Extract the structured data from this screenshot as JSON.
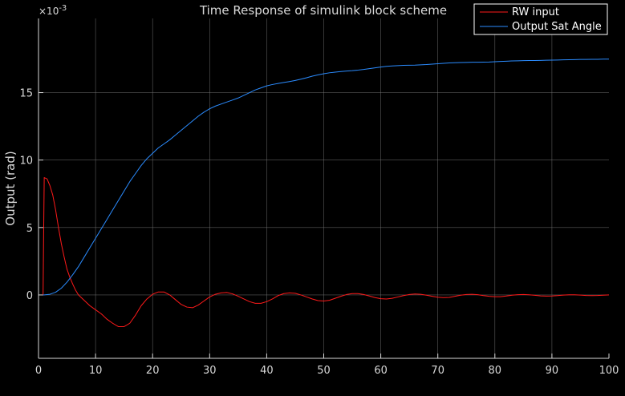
{
  "chart_data": {
    "type": "line",
    "title": "Time Response of simulink block scheme",
    "xlabel": "",
    "ylabel": "Output  (rad)",
    "y_exponent_label": "×10",
    "y_exponent_power": "-3",
    "xlim": [
      0,
      100
    ],
    "ylim": [
      -4.7,
      20.5
    ],
    "x_ticks": [
      0,
      10,
      20,
      30,
      40,
      50,
      60,
      70,
      80,
      90,
      100
    ],
    "y_ticks": [
      0,
      5,
      10,
      15
    ],
    "x_tick_labels": [
      "0",
      "10",
      "20",
      "30",
      "40",
      "50",
      "60",
      "70",
      "80",
      "90",
      "100"
    ],
    "y_tick_labels": [
      "0",
      "5",
      "10",
      "15"
    ],
    "grid": true,
    "legend_position": "top-right",
    "background_color": "#000000",
    "axes_color": "#d9d9d9",
    "grid_color": "#7a7a7a",
    "series": [
      {
        "name": "RW input",
        "color": "#ff1a1a",
        "points": [
          [
            0.8,
            0
          ],
          [
            0.9,
            4.5
          ],
          [
            1.0,
            8.7
          ],
          [
            1.5,
            8.6
          ],
          [
            2.0,
            8.1
          ],
          [
            2.5,
            7.4
          ],
          [
            3.0,
            6.3
          ],
          [
            3.5,
            5.0
          ],
          [
            4.0,
            3.8
          ],
          [
            4.5,
            2.8
          ],
          [
            5.0,
            1.9
          ],
          [
            5.5,
            1.3
          ],
          [
            6.0,
            0.8
          ],
          [
            6.5,
            0.35
          ],
          [
            7.0,
            0.0
          ],
          [
            8.0,
            -0.4
          ],
          [
            9.0,
            -0.8
          ],
          [
            10.0,
            -1.1
          ],
          [
            11.0,
            -1.4
          ],
          [
            12.0,
            -1.8
          ],
          [
            13.0,
            -2.1
          ],
          [
            14.0,
            -2.35
          ],
          [
            15.0,
            -2.35
          ],
          [
            16.0,
            -2.1
          ],
          [
            17.0,
            -1.5
          ],
          [
            18.0,
            -0.8
          ],
          [
            19.0,
            -0.3
          ],
          [
            20.0,
            0.05
          ],
          [
            21.0,
            0.22
          ],
          [
            22.0,
            0.22
          ],
          [
            23.0,
            0.0
          ],
          [
            24.0,
            -0.35
          ],
          [
            25.0,
            -0.7
          ],
          [
            26.0,
            -0.9
          ],
          [
            27.0,
            -0.95
          ],
          [
            28.0,
            -0.75
          ],
          [
            29.0,
            -0.45
          ],
          [
            30.0,
            -0.15
          ],
          [
            31.0,
            0.05
          ],
          [
            32.0,
            0.15
          ],
          [
            33.0,
            0.18
          ],
          [
            34.0,
            0.08
          ],
          [
            35.0,
            -0.1
          ],
          [
            36.0,
            -0.3
          ],
          [
            37.0,
            -0.5
          ],
          [
            38.0,
            -0.62
          ],
          [
            39.0,
            -0.62
          ],
          [
            40.0,
            -0.5
          ],
          [
            41.0,
            -0.3
          ],
          [
            42.0,
            -0.05
          ],
          [
            43.0,
            0.1
          ],
          [
            44.0,
            0.15
          ],
          [
            45.0,
            0.12
          ],
          [
            46.0,
            0.0
          ],
          [
            47.0,
            -0.15
          ],
          [
            48.0,
            -0.3
          ],
          [
            49.0,
            -0.42
          ],
          [
            50.0,
            -0.45
          ],
          [
            51.0,
            -0.4
          ],
          [
            52.0,
            -0.25
          ],
          [
            53.0,
            -0.1
          ],
          [
            54.0,
            0.03
          ],
          [
            55.0,
            0.1
          ],
          [
            56.0,
            0.1
          ],
          [
            57.0,
            0.03
          ],
          [
            58.0,
            -0.08
          ],
          [
            59.0,
            -0.2
          ],
          [
            60.0,
            -0.28
          ],
          [
            61.0,
            -0.3
          ],
          [
            62.0,
            -0.25
          ],
          [
            63.0,
            -0.15
          ],
          [
            64.0,
            -0.05
          ],
          [
            65.0,
            0.03
          ],
          [
            66.0,
            0.07
          ],
          [
            67.0,
            0.05
          ],
          [
            68.0,
            -0.02
          ],
          [
            69.0,
            -0.1
          ],
          [
            70.0,
            -0.17
          ],
          [
            71.0,
            -0.2
          ],
          [
            72.0,
            -0.18
          ],
          [
            73.0,
            -0.1
          ],
          [
            74.0,
            -0.02
          ],
          [
            75.0,
            0.03
          ],
          [
            76.0,
            0.05
          ],
          [
            77.0,
            0.02
          ],
          [
            78.0,
            -0.05
          ],
          [
            79.0,
            -0.1
          ],
          [
            80.0,
            -0.13
          ],
          [
            81.0,
            -0.13
          ],
          [
            82.0,
            -0.08
          ],
          [
            83.0,
            -0.02
          ],
          [
            84.0,
            0.02
          ],
          [
            85.0,
            0.03
          ],
          [
            86.0,
            0.01
          ],
          [
            87.0,
            -0.03
          ],
          [
            88.0,
            -0.07
          ],
          [
            89.0,
            -0.09
          ],
          [
            90.0,
            -0.08
          ],
          [
            91.0,
            -0.05
          ],
          [
            92.0,
            -0.01
          ],
          [
            93.0,
            0.01
          ],
          [
            94.0,
            0.01
          ],
          [
            95.0,
            -0.01
          ],
          [
            96.0,
            -0.04
          ],
          [
            97.0,
            -0.05
          ],
          [
            98.0,
            -0.04
          ],
          [
            99.0,
            -0.02
          ],
          [
            100.0,
            0.0
          ]
        ]
      },
      {
        "name": "Output Sat Angle",
        "color": "#2b8cff",
        "points": [
          [
            0.8,
            0
          ],
          [
            1.0,
            0.0
          ],
          [
            2.0,
            0.05
          ],
          [
            3.0,
            0.2
          ],
          [
            4.0,
            0.5
          ],
          [
            5.0,
            0.95
          ],
          [
            6.0,
            1.5
          ],
          [
            7.0,
            2.1
          ],
          [
            8.0,
            2.8
          ],
          [
            9.0,
            3.5
          ],
          [
            10.0,
            4.2
          ],
          [
            11.0,
            4.9
          ],
          [
            12.0,
            5.6
          ],
          [
            13.0,
            6.3
          ],
          [
            14.0,
            7.0
          ],
          [
            15.0,
            7.7
          ],
          [
            16.0,
            8.4
          ],
          [
            17.0,
            9.0
          ],
          [
            18.0,
            9.6
          ],
          [
            19.0,
            10.1
          ],
          [
            20.0,
            10.5
          ],
          [
            21.0,
            10.9
          ],
          [
            22.0,
            11.2
          ],
          [
            23.0,
            11.5
          ],
          [
            24.0,
            11.85
          ],
          [
            25.0,
            12.2
          ],
          [
            26.0,
            12.55
          ],
          [
            27.0,
            12.9
          ],
          [
            28.0,
            13.25
          ],
          [
            29.0,
            13.55
          ],
          [
            30.0,
            13.8
          ],
          [
            31.0,
            14.0
          ],
          [
            32.0,
            14.15
          ],
          [
            33.0,
            14.3
          ],
          [
            34.0,
            14.45
          ],
          [
            35.0,
            14.6
          ],
          [
            36.0,
            14.8
          ],
          [
            37.0,
            15.0
          ],
          [
            38.0,
            15.2
          ],
          [
            39.0,
            15.35
          ],
          [
            40.0,
            15.5
          ],
          [
            41.0,
            15.6
          ],
          [
            42.0,
            15.68
          ],
          [
            43.0,
            15.75
          ],
          [
            44.0,
            15.82
          ],
          [
            45.0,
            15.9
          ],
          [
            46.0,
            16.0
          ],
          [
            47.0,
            16.1
          ],
          [
            48.0,
            16.22
          ],
          [
            49.0,
            16.32
          ],
          [
            50.0,
            16.4
          ],
          [
            51.0,
            16.47
          ],
          [
            52.0,
            16.52
          ],
          [
            53.0,
            16.56
          ],
          [
            54.0,
            16.6
          ],
          [
            55.0,
            16.63
          ],
          [
            56.0,
            16.67
          ],
          [
            57.0,
            16.72
          ],
          [
            58.0,
            16.78
          ],
          [
            59.0,
            16.84
          ],
          [
            60.0,
            16.9
          ],
          [
            61.0,
            16.95
          ],
          [
            62.0,
            16.98
          ],
          [
            63.0,
            17.0
          ],
          [
            64.0,
            17.02
          ],
          [
            65.0,
            17.03
          ],
          [
            66.0,
            17.04
          ],
          [
            67.0,
            17.06
          ],
          [
            68.0,
            17.08
          ],
          [
            69.0,
            17.11
          ],
          [
            70.0,
            17.14
          ],
          [
            71.0,
            17.17
          ],
          [
            72.0,
            17.2
          ],
          [
            73.0,
            17.22
          ],
          [
            74.0,
            17.23
          ],
          [
            75.0,
            17.24
          ],
          [
            76.0,
            17.25
          ],
          [
            77.0,
            17.25
          ],
          [
            78.0,
            17.26
          ],
          [
            79.0,
            17.27
          ],
          [
            80.0,
            17.29
          ],
          [
            81.0,
            17.31
          ],
          [
            82.0,
            17.33
          ],
          [
            83.0,
            17.35
          ],
          [
            84.0,
            17.36
          ],
          [
            85.0,
            17.37
          ],
          [
            86.0,
            17.38
          ],
          [
            87.0,
            17.38
          ],
          [
            88.0,
            17.39
          ],
          [
            89.0,
            17.4
          ],
          [
            90.0,
            17.41
          ],
          [
            91.0,
            17.42
          ],
          [
            92.0,
            17.43
          ],
          [
            93.0,
            17.44
          ],
          [
            94.0,
            17.45
          ],
          [
            95.0,
            17.46
          ],
          [
            96.0,
            17.46
          ],
          [
            97.0,
            17.47
          ],
          [
            98.0,
            17.47
          ],
          [
            99.0,
            17.48
          ],
          [
            100.0,
            17.48
          ]
        ]
      }
    ]
  }
}
